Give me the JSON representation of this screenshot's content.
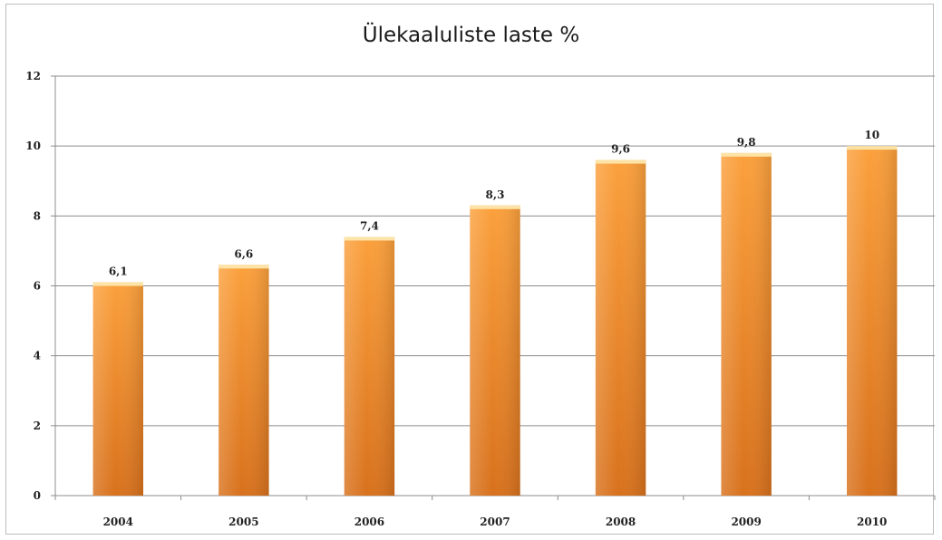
{
  "chart_data": {
    "type": "bar",
    "title": "Ülekaaluliste laste %",
    "categories": [
      "2004",
      "2005",
      "2006",
      "2007",
      "2008",
      "2009",
      "2010"
    ],
    "values": [
      6.1,
      6.6,
      7.4,
      8.3,
      9.6,
      9.8,
      10
    ],
    "data_labels": [
      "6,1",
      "6,6",
      "7,4",
      "8,3",
      "9,6",
      "9,8",
      "10"
    ],
    "ylim": [
      0,
      12
    ],
    "yticks": [
      0,
      2,
      4,
      6,
      8,
      10,
      12
    ],
    "grid": true,
    "legend": "none",
    "bar_color": "#f5932a"
  }
}
